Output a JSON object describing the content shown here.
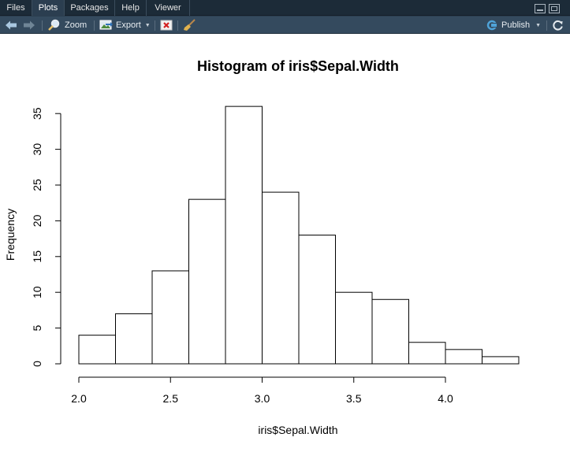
{
  "tabs": [
    {
      "label": "Files"
    },
    {
      "label": "Plots"
    },
    {
      "label": "Packages"
    },
    {
      "label": "Help"
    },
    {
      "label": "Viewer"
    }
  ],
  "active_tab": "Plots",
  "toolbar": {
    "back_icon": "arrow-left-icon",
    "forward_icon": "arrow-right-icon",
    "zoom_label": "Zoom",
    "export_label": "Export",
    "delete_icon": "delete-plot-icon",
    "clear_icon": "broom-icon",
    "publish_label": "Publish",
    "refresh_icon": "refresh-icon"
  },
  "colors": {
    "tab_bar": "#1c2b38",
    "toolbar": "#344a5e",
    "publish_icon": "#4fa3d8"
  },
  "chart_data": {
    "type": "bar",
    "title": "Histogram of iris$Sepal.Width",
    "xlabel": "iris$Sepal.Width",
    "ylabel": "Frequency",
    "bins": [
      {
        "from": 2.0,
        "to": 2.2,
        "count": 4
      },
      {
        "from": 2.2,
        "to": 2.4,
        "count": 7
      },
      {
        "from": 2.4,
        "to": 2.6,
        "count": 13
      },
      {
        "from": 2.6,
        "to": 2.8,
        "count": 23
      },
      {
        "from": 2.8,
        "to": 3.0,
        "count": 36
      },
      {
        "from": 3.0,
        "to": 3.2,
        "count": 24
      },
      {
        "from": 3.2,
        "to": 3.4,
        "count": 18
      },
      {
        "from": 3.4,
        "to": 3.6,
        "count": 10
      },
      {
        "from": 3.6,
        "to": 3.8,
        "count": 9
      },
      {
        "from": 3.8,
        "to": 4.0,
        "count": 3
      },
      {
        "from": 4.0,
        "to": 4.2,
        "count": 2
      },
      {
        "from": 4.2,
        "to": 4.4,
        "count": 1
      }
    ],
    "xticks": [
      "2.0",
      "2.5",
      "3.0",
      "3.5",
      "4.0"
    ],
    "yticks": [
      "0",
      "5",
      "10",
      "15",
      "20",
      "25",
      "30",
      "35"
    ],
    "xlim": [
      2.0,
      4.4
    ],
    "ylim": [
      0,
      35
    ],
    "grid": false,
    "fill": "#ffffff",
    "stroke": "#000000"
  }
}
